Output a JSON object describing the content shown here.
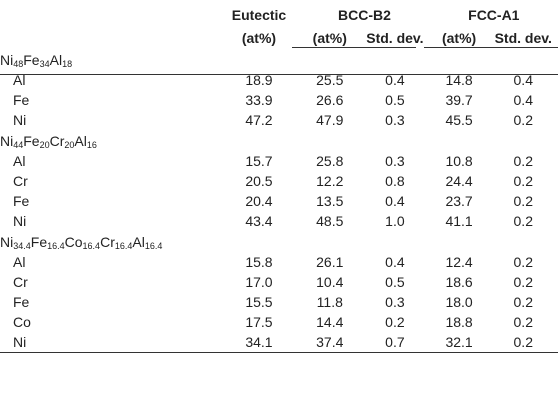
{
  "header": {
    "eutectic": "Eutectic",
    "eutectic_unit": "(at%)",
    "bcc_group": "BCC-B2",
    "fcc_group": "FCC-A1",
    "at_pct": "(at%)",
    "std_dev": "Std. dev."
  },
  "sections": [
    {
      "alloy_parts": [
        [
          "Ni",
          "48"
        ],
        [
          "Fe",
          "34"
        ],
        [
          "Al",
          "18"
        ]
      ],
      "rows": [
        {
          "el": "Al",
          "eutectic": "18.9",
          "bcc_at": "25.5",
          "bcc_sd": "0.4",
          "fcc_at": "14.8",
          "fcc_sd": "0.4"
        },
        {
          "el": "Fe",
          "eutectic": "33.9",
          "bcc_at": "26.6",
          "bcc_sd": "0.5",
          "fcc_at": "39.7",
          "fcc_sd": "0.4"
        },
        {
          "el": "Ni",
          "eutectic": "47.2",
          "bcc_at": "47.9",
          "bcc_sd": "0.3",
          "fcc_at": "45.5",
          "fcc_sd": "0.2"
        }
      ]
    },
    {
      "alloy_parts": [
        [
          "Ni",
          "44"
        ],
        [
          "Fe",
          "20"
        ],
        [
          "Cr",
          "20"
        ],
        [
          "Al",
          "16"
        ]
      ],
      "rows": [
        {
          "el": "Al",
          "eutectic": "15.7",
          "bcc_at": "25.8",
          "bcc_sd": "0.3",
          "fcc_at": "10.8",
          "fcc_sd": "0.2"
        },
        {
          "el": "Cr",
          "eutectic": "20.5",
          "bcc_at": "12.2",
          "bcc_sd": "0.8",
          "fcc_at": "24.4",
          "fcc_sd": "0.2"
        },
        {
          "el": "Fe",
          "eutectic": "20.4",
          "bcc_at": "13.5",
          "bcc_sd": "0.4",
          "fcc_at": "23.7",
          "fcc_sd": "0.2"
        },
        {
          "el": "Ni",
          "eutectic": "43.4",
          "bcc_at": "48.5",
          "bcc_sd": "1.0",
          "fcc_at": "41.1",
          "fcc_sd": "0.2"
        }
      ]
    },
    {
      "alloy_parts": [
        [
          "Ni",
          "34.4"
        ],
        [
          "Fe",
          "16.4"
        ],
        [
          "Co",
          "16.4"
        ],
        [
          "Cr",
          "16.4"
        ],
        [
          "Al",
          "16.4"
        ]
      ],
      "rows": [
        {
          "el": "Al",
          "eutectic": "15.8",
          "bcc_at": "26.1",
          "bcc_sd": "0.4",
          "fcc_at": "12.4",
          "fcc_sd": "0.2"
        },
        {
          "el": "Cr",
          "eutectic": "17.0",
          "bcc_at": "10.4",
          "bcc_sd": "0.5",
          "fcc_at": "18.6",
          "fcc_sd": "0.2"
        },
        {
          "el": "Fe",
          "eutectic": "15.5",
          "bcc_at": "11.8",
          "bcc_sd": "0.3",
          "fcc_at": "18.0",
          "fcc_sd": "0.2"
        },
        {
          "el": "Co",
          "eutectic": "17.5",
          "bcc_at": "14.4",
          "bcc_sd": "0.2",
          "fcc_at": "18.8",
          "fcc_sd": "0.2"
        },
        {
          "el": "Ni",
          "eutectic": "34.1",
          "bcc_at": "37.4",
          "bcc_sd": "0.7",
          "fcc_at": "32.1",
          "fcc_sd": "0.2"
        }
      ]
    }
  ]
}
